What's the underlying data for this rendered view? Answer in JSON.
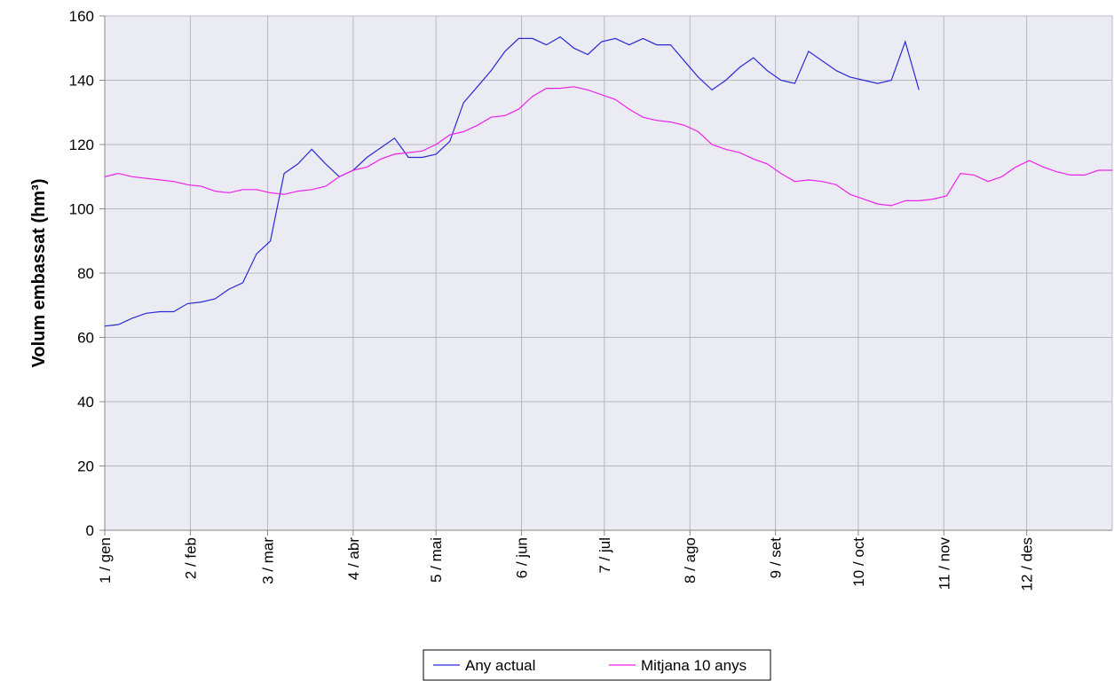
{
  "chart_data": {
    "type": "line",
    "y_label": "Volum embassat (hm³)",
    "x": [
      0,
      5,
      10,
      15,
      20,
      25,
      30,
      35,
      40,
      45,
      50,
      55,
      60,
      65,
      70,
      75,
      80,
      85,
      90,
      95,
      100,
      105,
      110,
      115,
      120,
      125,
      130,
      135,
      140,
      145,
      150,
      155,
      160,
      165,
      170,
      175,
      180,
      185,
      190,
      195,
      200,
      205,
      210,
      215,
      220,
      225,
      230,
      235,
      240,
      245,
      250,
      255,
      260,
      265,
      270,
      275,
      280,
      285,
      290,
      295,
      300,
      305,
      310,
      315,
      320,
      325,
      330,
      335,
      340,
      345,
      350,
      355,
      360,
      365
    ],
    "series": [
      {
        "name": "Any actual",
        "color": "#2a2ad6",
        "values": [
          63.5,
          64,
          66,
          67.5,
          68,
          68,
          70.5,
          71,
          72,
          75,
          77,
          86,
          90,
          111,
          114,
          118.5,
          114,
          110,
          112,
          116,
          119,
          122,
          116,
          116,
          117,
          121,
          133,
          138,
          143,
          149,
          153,
          153,
          151,
          153.5,
          150,
          148,
          152,
          153,
          151,
          153,
          151,
          151,
          146,
          141,
          137,
          140,
          144,
          147,
          143,
          140,
          139,
          149,
          146,
          143,
          141,
          140,
          139,
          140,
          152,
          137,
          null,
          null,
          null,
          null,
          null,
          null,
          null,
          null,
          null,
          null,
          null,
          null,
          null,
          null
        ]
      },
      {
        "name": "Mitjana 10 anys",
        "color": "#ee22ee",
        "values": [
          110,
          111,
          110,
          109.5,
          109,
          108.5,
          107.5,
          107,
          105.5,
          105,
          106,
          106,
          105,
          104.5,
          105.5,
          106,
          107,
          110,
          112,
          113,
          115.5,
          117,
          117.5,
          118,
          120,
          123,
          124,
          126,
          128.5,
          129,
          131,
          135,
          137.5,
          137.5,
          138,
          137,
          135.5,
          134,
          131,
          128.5,
          127.5,
          127,
          126,
          124,
          120,
          118.5,
          117.5,
          115.5,
          114,
          111,
          108.5,
          109,
          108.5,
          107.5,
          104.5,
          103,
          101.5,
          101,
          102.5,
          102.5,
          103,
          104,
          111,
          110.5,
          108.5,
          110,
          113,
          115,
          113,
          111.5,
          110.5,
          110.5,
          112,
          112
        ]
      }
    ],
    "xlim": [
      0,
      365
    ],
    "xticks": [
      {
        "value": 0,
        "label": "1 / gen"
      },
      {
        "value": 31,
        "label": "2 / feb"
      },
      {
        "value": 59,
        "label": "3 / mar"
      },
      {
        "value": 90,
        "label": "4 / abr"
      },
      {
        "value": 120,
        "label": "5 / mai"
      },
      {
        "value": 151,
        "label": "6 / jun"
      },
      {
        "value": 181,
        "label": "7 / jul"
      },
      {
        "value": 212,
        "label": "8 / ago"
      },
      {
        "value": 243,
        "label": "9 / set"
      },
      {
        "value": 273,
        "label": "10 / oct"
      },
      {
        "value": 304,
        "label": "11 / nov"
      },
      {
        "value": 334,
        "label": "12 / des"
      }
    ],
    "ylim": [
      0,
      160
    ],
    "yticks": [
      0,
      20,
      40,
      60,
      80,
      100,
      120,
      140,
      160
    ],
    "grid": true,
    "legend": "bottom"
  }
}
